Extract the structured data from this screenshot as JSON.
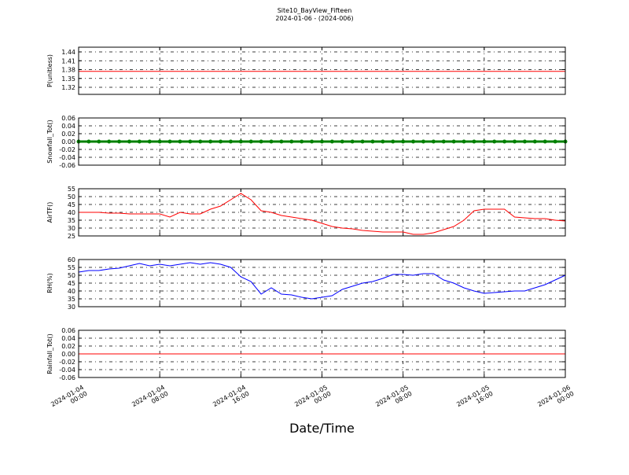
{
  "figure": {
    "title": "Site10_BayView_Fifteen",
    "subtitle": "2024-01-06 - (2024-006)"
  },
  "chart_data": [
    {
      "type": "line",
      "ylabel": "P(unitless)",
      "xlim": [
        "2024-01-04 00:00",
        "2024-01-06 00:00"
      ],
      "xticks": [
        "2024-01-04 00:00",
        "2024-01-04 08:00",
        "2024-01-04 16:00",
        "2024-01-05 00:00",
        "2024-01-05 08:00",
        "2024-01-05 16:00",
        "2024-01-06 00:00"
      ],
      "ylim": [
        1.296,
        1.456
      ],
      "yticks": [
        1.32,
        1.35,
        1.38,
        1.41,
        1.44
      ],
      "grid": true,
      "series": [
        {
          "color": "#ff0000",
          "marker": false,
          "values": [
            1.374,
            1.374,
            1.374,
            1.374,
            1.374,
            1.374,
            1.374,
            1.374,
            1.374,
            1.374,
            1.374,
            1.374,
            1.374,
            1.374,
            1.374,
            1.374,
            1.374,
            1.374,
            1.374,
            1.374,
            1.374,
            1.374,
            1.374,
            1.374,
            1.374,
            1.374,
            1.374,
            1.374,
            1.374,
            1.374,
            1.374,
            1.374,
            1.374,
            1.374,
            1.374,
            1.374,
            1.374,
            1.374,
            1.374,
            1.374,
            1.374,
            1.374,
            1.374,
            1.374,
            1.374,
            1.374,
            1.374,
            1.374,
            1.374
          ]
        }
      ]
    },
    {
      "type": "line",
      "ylabel": "Snowfall_Tot()",
      "xlim": [
        "2024-01-04 00:00",
        "2024-01-06 00:00"
      ],
      "xticks": [
        "2024-01-04 00:00",
        "2024-01-04 08:00",
        "2024-01-04 16:00",
        "2024-01-05 00:00",
        "2024-01-05 08:00",
        "2024-01-05 16:00",
        "2024-01-06 00:00"
      ],
      "ylim": [
        -0.06,
        0.06
      ],
      "yticks": [
        -0.06,
        -0.04,
        -0.02,
        {
          "value": 0,
          "label": "0.00"
        },
        0.02,
        0.04,
        0.06
      ],
      "grid": true,
      "series": [
        {
          "color": "#008000",
          "marker": true,
          "values": [
            0,
            0,
            0,
            0,
            0,
            0,
            0,
            0,
            0,
            0,
            0,
            0,
            0,
            0,
            0,
            0,
            0,
            0,
            0,
            0,
            0,
            0,
            0,
            0,
            0,
            0,
            0,
            0,
            0,
            0,
            0,
            0,
            0,
            0,
            0,
            0,
            0,
            0,
            0,
            0,
            0,
            0,
            0,
            0,
            0,
            0,
            0,
            0,
            0
          ]
        }
      ]
    },
    {
      "type": "line",
      "ylabel": "AirTF()",
      "xlim": [
        "2024-01-04 00:00",
        "2024-01-06 00:00"
      ],
      "xticks": [
        "2024-01-04 00:00",
        "2024-01-04 08:00",
        "2024-01-04 16:00",
        "2024-01-05 00:00",
        "2024-01-05 08:00",
        "2024-01-05 16:00",
        "2024-01-06 00:00"
      ],
      "ylim": [
        25,
        55
      ],
      "yticks": [
        25,
        30,
        35,
        40,
        45,
        50,
        55
      ],
      "grid": true,
      "series": [
        {
          "color": "#ff0000",
          "marker": false,
          "values": [
            40,
            40,
            40,
            39.5,
            39.5,
            39,
            39,
            39,
            39,
            37,
            40,
            39,
            39,
            42,
            44,
            48,
            52,
            48,
            41,
            40,
            38,
            37,
            36,
            35,
            33,
            31,
            30,
            29.5,
            28.5,
            28,
            27.5,
            27.5,
            27.5,
            26,
            26,
            27,
            29,
            31,
            35,
            41,
            42,
            42,
            42,
            37,
            36.5,
            36,
            36,
            35,
            34.5
          ]
        }
      ]
    },
    {
      "type": "line",
      "ylabel": "RH(%)",
      "xlim": [
        "2024-01-04 00:00",
        "2024-01-06 00:00"
      ],
      "xticks": [
        "2024-01-04 00:00",
        "2024-01-04 08:00",
        "2024-01-04 16:00",
        "2024-01-05 00:00",
        "2024-01-05 08:00",
        "2024-01-05 16:00",
        "2024-01-06 00:00"
      ],
      "ylim": [
        30,
        60
      ],
      "yticks": [
        30,
        35,
        40,
        45,
        50,
        55,
        60
      ],
      "grid": true,
      "series": [
        {
          "color": "#0000ff",
          "marker": false,
          "values": [
            52,
            53,
            53,
            54,
            54.5,
            56,
            57.5,
            56,
            57,
            56,
            57,
            58,
            57,
            58,
            57,
            55,
            49,
            46,
            38,
            42,
            38,
            37.5,
            36,
            35,
            36,
            37,
            41,
            43,
            45,
            46,
            48,
            50.5,
            50.5,
            50,
            51,
            51,
            47,
            45,
            42,
            40,
            38.5,
            39,
            39.5,
            40,
            40,
            42,
            44,
            47,
            50
          ]
        }
      ]
    },
    {
      "type": "line",
      "ylabel": "Rainfall_Tot()",
      "xlabel": "Date/Time",
      "xlim": [
        "2024-01-04 00:00",
        "2024-01-06 00:00"
      ],
      "xticks": [
        {
          "value": "2024-01-04 00:00",
          "label": "2024-01-04\n00:00"
        },
        {
          "value": "2024-01-04 08:00",
          "label": "2024-01-04\n08:00"
        },
        {
          "value": "2024-01-04 16:00",
          "label": "2024-01-04\n16:00"
        },
        {
          "value": "2024-01-05 00:00",
          "label": "2024-01-05\n00:00"
        },
        {
          "value": "2024-01-05 08:00",
          "label": "2024-01-05\n08:00"
        },
        {
          "value": "2024-01-05 16:00",
          "label": "2024-01-05\n16:00"
        },
        {
          "value": "2024-01-06 00:00",
          "label": "2024-01-06\n00:00"
        }
      ],
      "ylim": [
        -0.06,
        0.06
      ],
      "yticks": [
        -0.06,
        -0.04,
        -0.02,
        {
          "value": 0,
          "label": "0.00"
        },
        0.02,
        0.04,
        0.06
      ],
      "grid": true,
      "series": [
        {
          "color": "#ff0000",
          "marker": false,
          "values": [
            0,
            0,
            0,
            0,
            0,
            0,
            0,
            0,
            0,
            0,
            0,
            0,
            0,
            0,
            0,
            0,
            0,
            0,
            0,
            0,
            0,
            0,
            0,
            0,
            0,
            0,
            0,
            0,
            0,
            0,
            0,
            0,
            0,
            0,
            0,
            0,
            0,
            0,
            0,
            0,
            0,
            0,
            0,
            0,
            0,
            0,
            0,
            0,
            0
          ]
        }
      ]
    }
  ]
}
